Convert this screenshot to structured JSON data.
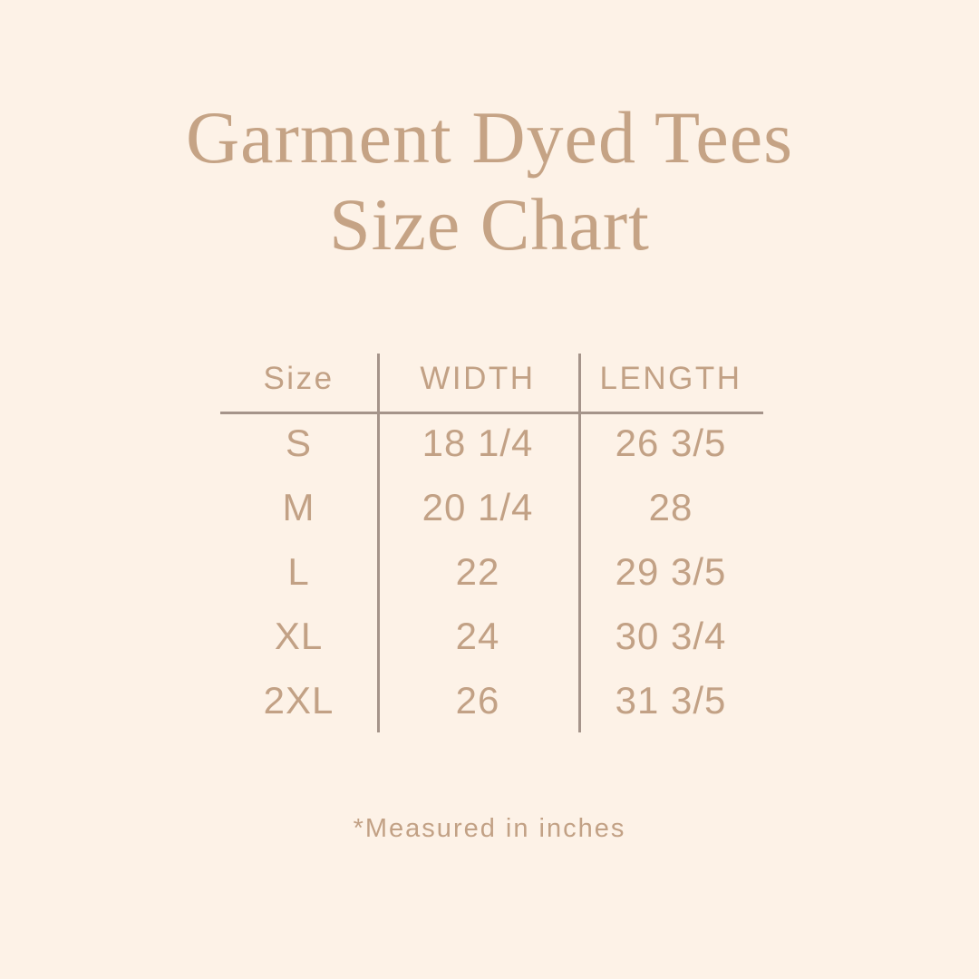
{
  "page": {
    "background_color": "#fdf2e7",
    "accent_text_color": "#c2a185",
    "line_color": "#a5948a"
  },
  "title": {
    "line1": "Garment Dyed Tees",
    "line2": "Size Chart",
    "color": "#c5a385"
  },
  "table": {
    "headers": {
      "size": "Size",
      "width": "WIDTH",
      "length": "LENGTH"
    },
    "rows": [
      {
        "size": "S",
        "width": "18 1/4",
        "length": "26 3/5"
      },
      {
        "size": "M",
        "width": "20 1/4",
        "length": "28"
      },
      {
        "size": "L",
        "width": "22",
        "length": "29 3/5"
      },
      {
        "size": "XL",
        "width": "24",
        "length": "30 3/4"
      },
      {
        "size": "2XL",
        "width": "26",
        "length": "31 3/5"
      }
    ]
  },
  "footnote": {
    "text": "*Measured in inches"
  }
}
